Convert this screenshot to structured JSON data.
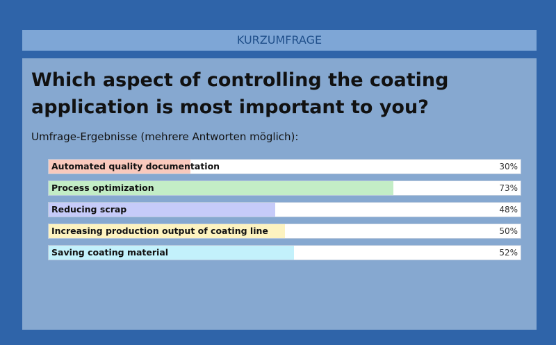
{
  "header": {
    "title": "KURZUMFRAGE"
  },
  "question": "Which aspect of controlling the coating application is most important to you?",
  "subtitle": "Umfrage-Ergebnisse (mehrere Antworten möglich):",
  "results": [
    {
      "label": "Automated quality documentation",
      "percent": 30,
      "percent_text": "30%",
      "color": "#f9c9bd"
    },
    {
      "label": "Process optimization",
      "percent": 73,
      "percent_text": "73%",
      "color": "#c3edc6"
    },
    {
      "label": "Reducing scrap",
      "percent": 48,
      "percent_text": "48%",
      "color": "#c6cbf9"
    },
    {
      "label": "Increasing production output of coating line",
      "percent": 50,
      "percent_text": "50%",
      "color": "#fdf3c0"
    },
    {
      "label": "Saving coating material",
      "percent": 52,
      "percent_text": "52%",
      "color": "#c3f1fb"
    }
  ]
}
